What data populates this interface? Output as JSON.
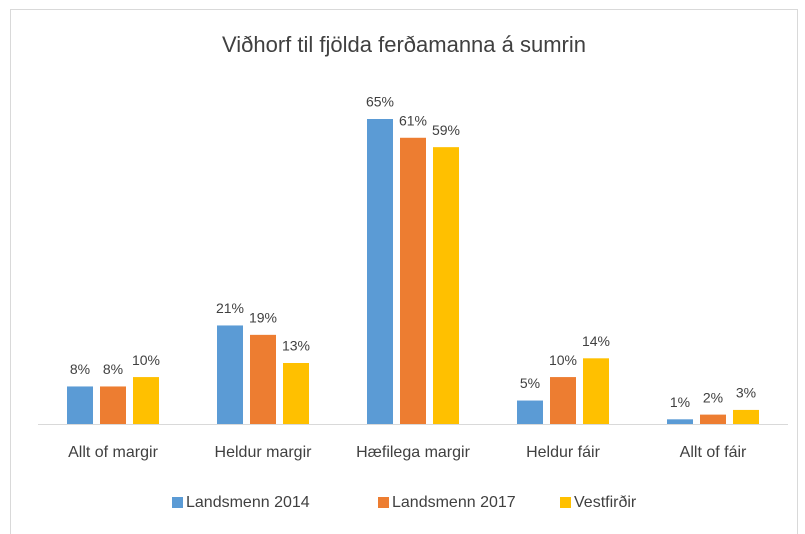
{
  "chart_data": {
    "type": "bar",
    "title": "Viðhorf til fjölda ferðamanna á sumrin",
    "categories": [
      "Allt of margir",
      "Heldur margir",
      "Hæfilega margir",
      "Heldur fáir",
      "Allt of fáir"
    ],
    "series": [
      {
        "name": "Landsmenn 2014",
        "color": "#5b9bd5",
        "values": [
          8,
          21,
          65,
          5,
          1
        ],
        "value_labels": [
          "8%",
          "21%",
          "65%",
          "5%",
          "1%"
        ]
      },
      {
        "name": "Landsmenn 2017",
        "color": "#ed7d31",
        "values": [
          8,
          19,
          61,
          10,
          2
        ],
        "value_labels": [
          "8%",
          "19%",
          "61%",
          "10%",
          "2%"
        ]
      },
      {
        "name": "Vestfirðir",
        "color": "#ffc000",
        "values": [
          10,
          13,
          59,
          14,
          3
        ],
        "value_labels": [
          "10%",
          "13%",
          "59%",
          "14%",
          "3%"
        ]
      }
    ],
    "legend": "bottom"
  }
}
